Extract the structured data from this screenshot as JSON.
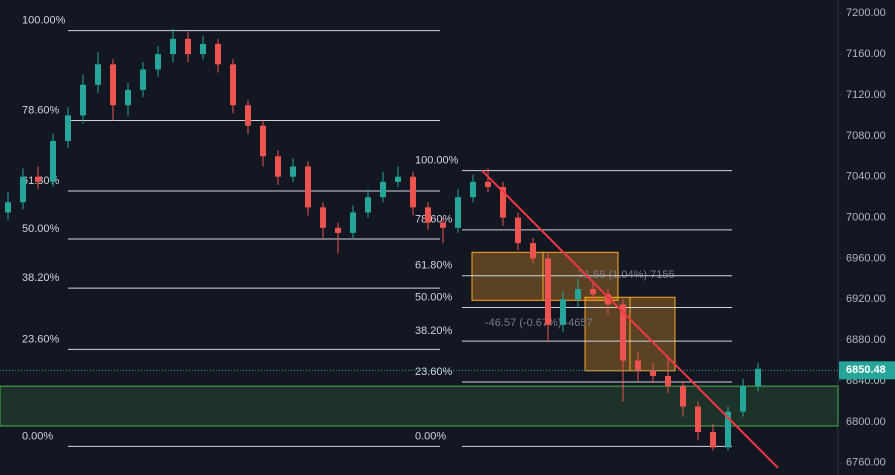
{
  "chart_data": {
    "type": "candlestick",
    "open": [
      7005,
      7015,
      7040,
      7035,
      7075,
      7100,
      7130,
      7150,
      7110,
      7125,
      7145,
      7160,
      7175,
      7160,
      7170,
      7150,
      7110,
      7090,
      7060,
      7040,
      7050,
      7010,
      6990,
      6985,
      7005,
      7020,
      7035,
      7040,
      7010,
      6995,
      6990,
      7020,
      7035,
      7030,
      7000,
      6975,
      6960,
      6895,
      6920,
      6930,
      6925,
      6915,
      6860,
      6850,
      6845,
      6835,
      6815,
      6790,
      6775,
      6810,
      6835
    ],
    "high": [
      7025,
      7048,
      7050,
      7082,
      7108,
      7140,
      7162,
      7155,
      7132,
      7152,
      7168,
      7185,
      7182,
      7178,
      7175,
      7155,
      7115,
      7095,
      7066,
      7058,
      7055,
      7015,
      6995,
      7012,
      7028,
      7045,
      7050,
      7045,
      7015,
      7000,
      7028,
      7042,
      7048,
      7035,
      7005,
      6980,
      6965,
      6928,
      6940,
      6938,
      6930,
      6920,
      6868,
      6858,
      6865,
      6840,
      6820,
      6798,
      6815,
      6842,
      6858
    ],
    "low": [
      6998,
      7008,
      7028,
      7030,
      7068,
      7092,
      7122,
      7095,
      7100,
      7118,
      7138,
      7152,
      7152,
      7155,
      7142,
      7102,
      7082,
      7050,
      7032,
      7035,
      7002,
      6980,
      6965,
      6980,
      7000,
      7015,
      7030,
      7002,
      6988,
      6975,
      6985,
      7015,
      7025,
      6992,
      6968,
      6955,
      6878,
      6888,
      6912,
      6918,
      6905,
      6820,
      6840,
      6838,
      6828,
      6805,
      6782,
      6772,
      6772,
      6805,
      6830
    ],
    "close": [
      7015,
      7040,
      7035,
      7075,
      7100,
      7130,
      7150,
      7110,
      7125,
      7145,
      7160,
      7175,
      7160,
      7170,
      7150,
      7110,
      7090,
      7060,
      7040,
      7050,
      7010,
      6990,
      6985,
      7005,
      7020,
      7035,
      7040,
      7010,
      6995,
      6990,
      7020,
      7035,
      7030,
      7000,
      6975,
      6960,
      6895,
      6920,
      6930,
      6925,
      6915,
      6860,
      6850,
      6845,
      6835,
      6815,
      6790,
      6775,
      6810,
      6835,
      6852
    ],
    "up_color": "#26a69a",
    "down_color": "#ef5350",
    "ylim": [
      6748,
      7213
    ],
    "yticks": [
      {
        "value": 6760,
        "label": "6760.00"
      },
      {
        "value": 6800,
        "label": "6800.00"
      },
      {
        "value": 6840,
        "label": "6840.00"
      },
      {
        "value": 6880,
        "label": "6880.00"
      },
      {
        "value": 6920,
        "label": "6920.00"
      },
      {
        "value": 6960,
        "label": "6960.00"
      },
      {
        "value": 7000,
        "label": "7000.00"
      },
      {
        "value": 7040,
        "label": "7040.00"
      },
      {
        "value": 7080,
        "label": "7080.00"
      },
      {
        "value": 7120,
        "label": "7120.00"
      },
      {
        "value": 7160,
        "label": "7160.00"
      },
      {
        "value": 7200,
        "label": "7200.00"
      }
    ],
    "fib_left": [
      {
        "value": 7183,
        "label": "100.00%"
      },
      {
        "value": 7095,
        "label": "78.60%"
      },
      {
        "value": 7026,
        "label": "61.80%"
      },
      {
        "value": 6979,
        "label": "50.00%"
      },
      {
        "value": 6931,
        "label": "38.20%"
      },
      {
        "value": 6871,
        "label": "23.60%"
      },
      {
        "value": 6776,
        "label": "0.00%"
      }
    ],
    "fib_right": [
      {
        "value": 7046,
        "label": "100.00%"
      },
      {
        "value": 6988,
        "label": "78.60%"
      },
      {
        "value": 6943,
        "label": "61.80%"
      },
      {
        "value": 6912,
        "label": "50.00%"
      },
      {
        "value": 6879,
        "label": "38.20%"
      },
      {
        "value": 6839,
        "label": "23.60%"
      },
      {
        "value": 6776,
        "label": "0.00%"
      }
    ],
    "zone": [
      6796,
      6835
    ],
    "trendline": [
      7046,
      6755
    ],
    "measures": [
      {
        "label": "71.55 (1.04%) 7155",
        "range": [
          6919,
          6966
        ]
      },
      {
        "label": "-46.57 (-0.67%) -4657",
        "range": [
          6850,
          6922
        ]
      }
    ],
    "last_price": 6850.48
  }
}
